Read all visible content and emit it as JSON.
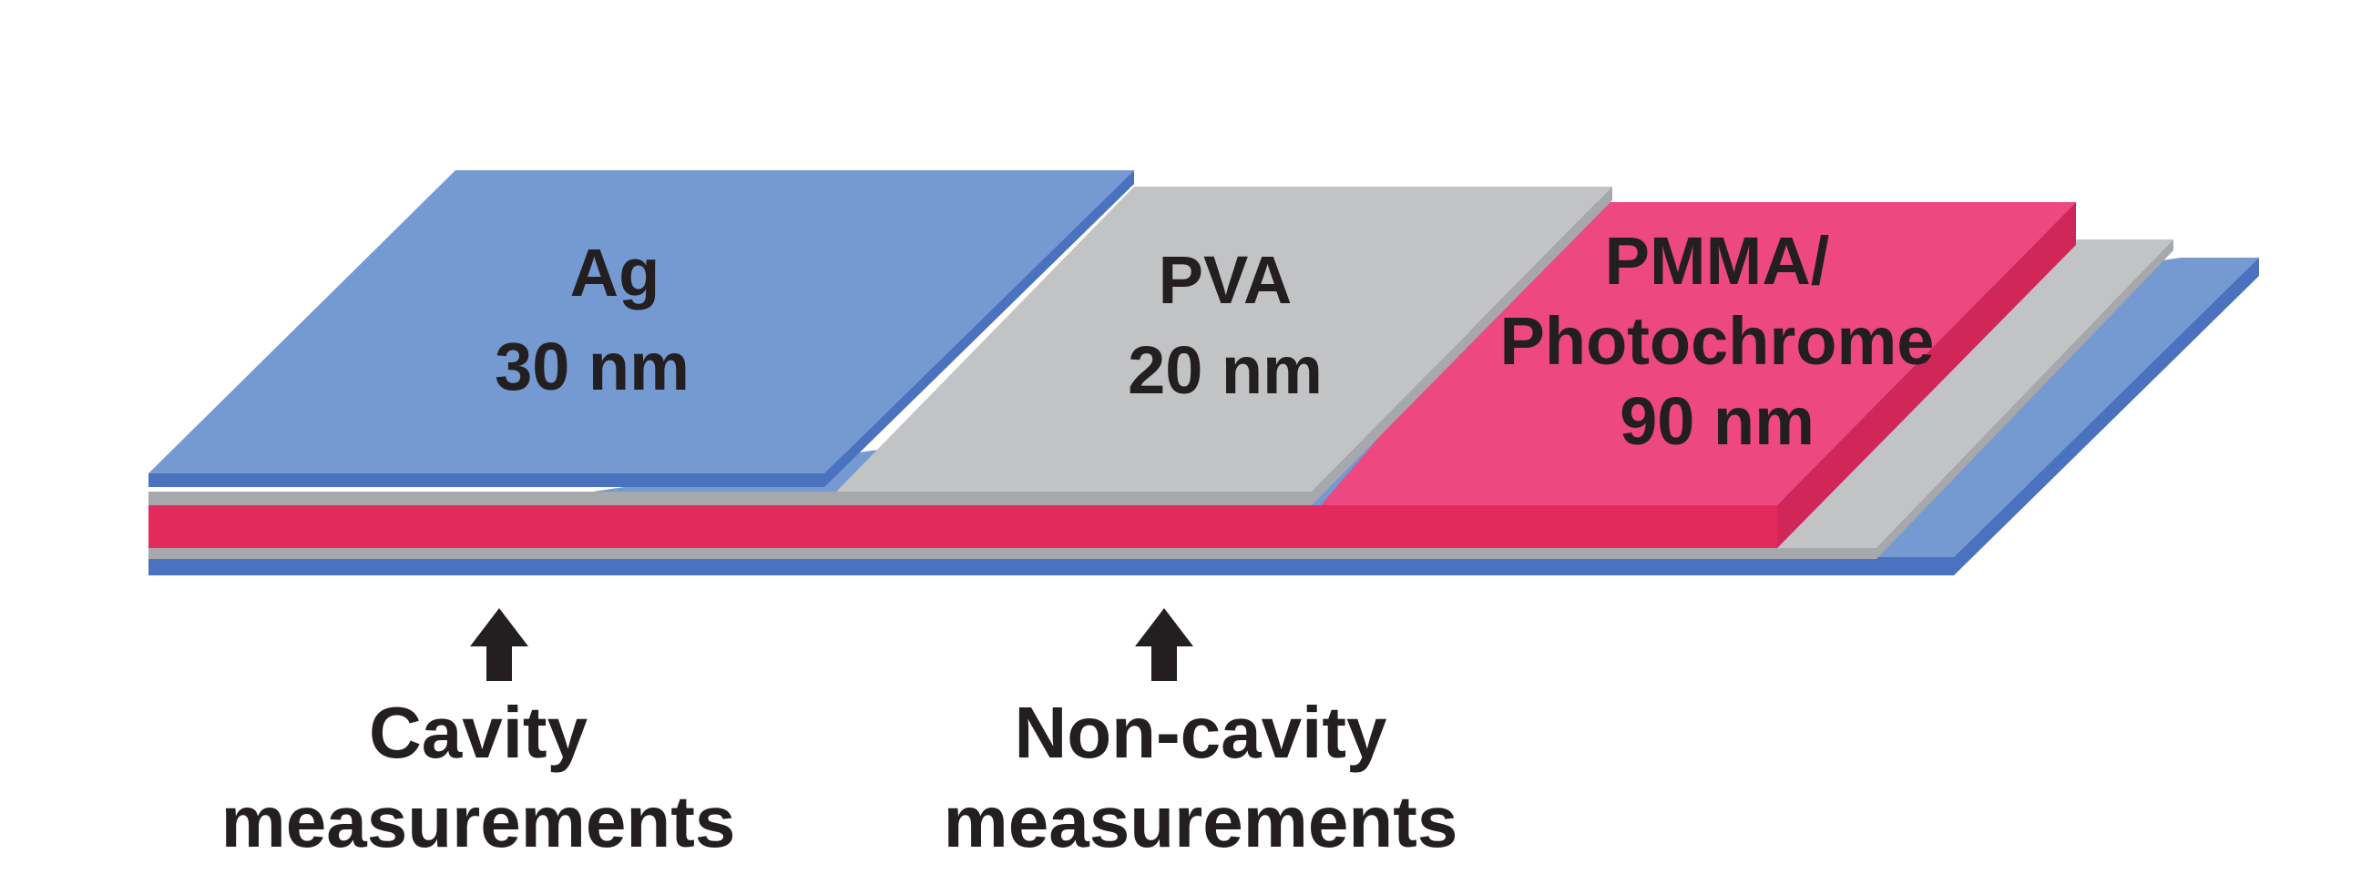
{
  "layers": {
    "ag": {
      "name": "Ag",
      "thickness": "30 nm",
      "color": "#7599d1",
      "edge_color": "#4b72be"
    },
    "pva": {
      "name": "PVA",
      "thickness": "20 nm",
      "color": "#c2c3c5",
      "edge_color": "#a6a8ab"
    },
    "pmma": {
      "name_line1": "PMMA/",
      "name_line2": "Photochrome",
      "thickness": "90 nm",
      "color": "#ed4880",
      "edge_color": "#d82a5c"
    }
  },
  "measurements": {
    "cavity": {
      "line1": "Cavity",
      "line2": "measurements"
    },
    "non_cavity": {
      "line1": "Non-cavity",
      "line2": "measurements"
    }
  },
  "text_color": "#231f20"
}
